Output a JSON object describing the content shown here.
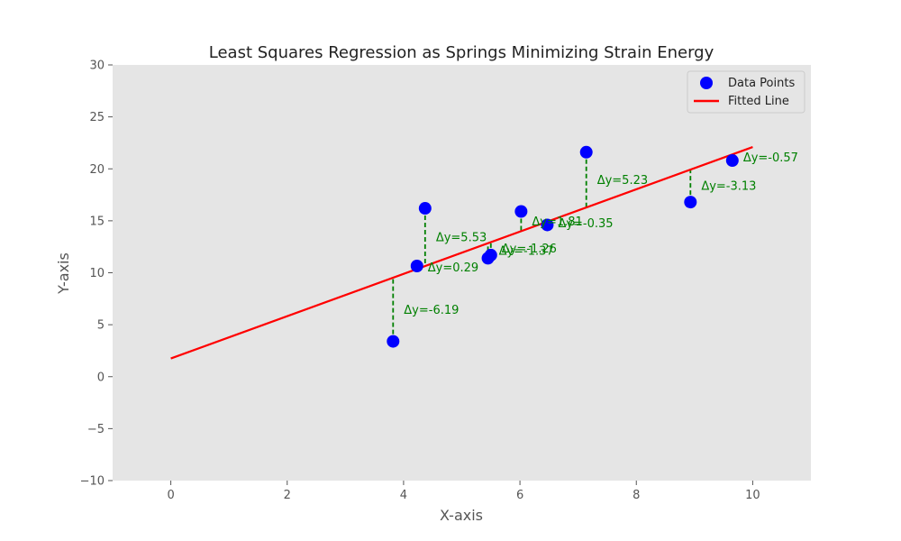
{
  "chart_data": {
    "type": "scatter",
    "title": "Least Squares Regression as Springs Minimizing Strain Energy",
    "xlabel": "X-axis",
    "ylabel": "Y-axis",
    "xlim": [
      -1,
      11
    ],
    "ylim": [
      -10,
      30
    ],
    "xticks": [
      0,
      2,
      4,
      6,
      8,
      10
    ],
    "yticks": [
      -10,
      -5,
      0,
      5,
      10,
      15,
      20,
      25,
      30
    ],
    "grid": false,
    "legend_position": "top-right",
    "legend": [
      "Data Points",
      "Fitted Line"
    ],
    "colors": {
      "points": "#0000ff",
      "line": "#ff0000",
      "springs": "#008000",
      "plot_background": "#e5e5e5",
      "page_background": "#ffffff"
    },
    "fitted_line": {
      "x": [
        0,
        10
      ],
      "y": [
        1.75,
        22.1
      ]
    },
    "points": [
      {
        "x": 3.82,
        "y": 3.4,
        "label": "Δy=-6.19"
      },
      {
        "x": 4.23,
        "y": 10.65,
        "label": "Δy=0.29"
      },
      {
        "x": 4.37,
        "y": 16.2,
        "label": "Δy=5.53"
      },
      {
        "x": 5.45,
        "y": 11.4,
        "label": "Δy=-1.37"
      },
      {
        "x": 5.5,
        "y": 11.7,
        "label": "Δy=-1.26"
      },
      {
        "x": 6.02,
        "y": 15.9,
        "label": "Δy=1.81"
      },
      {
        "x": 6.47,
        "y": 14.6,
        "label": "Δy=-0.35"
      },
      {
        "x": 7.14,
        "y": 21.6,
        "label": "Δy=5.23"
      },
      {
        "x": 8.93,
        "y": 16.8,
        "label": "Δy=-3.13"
      },
      {
        "x": 9.65,
        "y": 20.8,
        "label": "Δy=-0.57"
      }
    ]
  }
}
